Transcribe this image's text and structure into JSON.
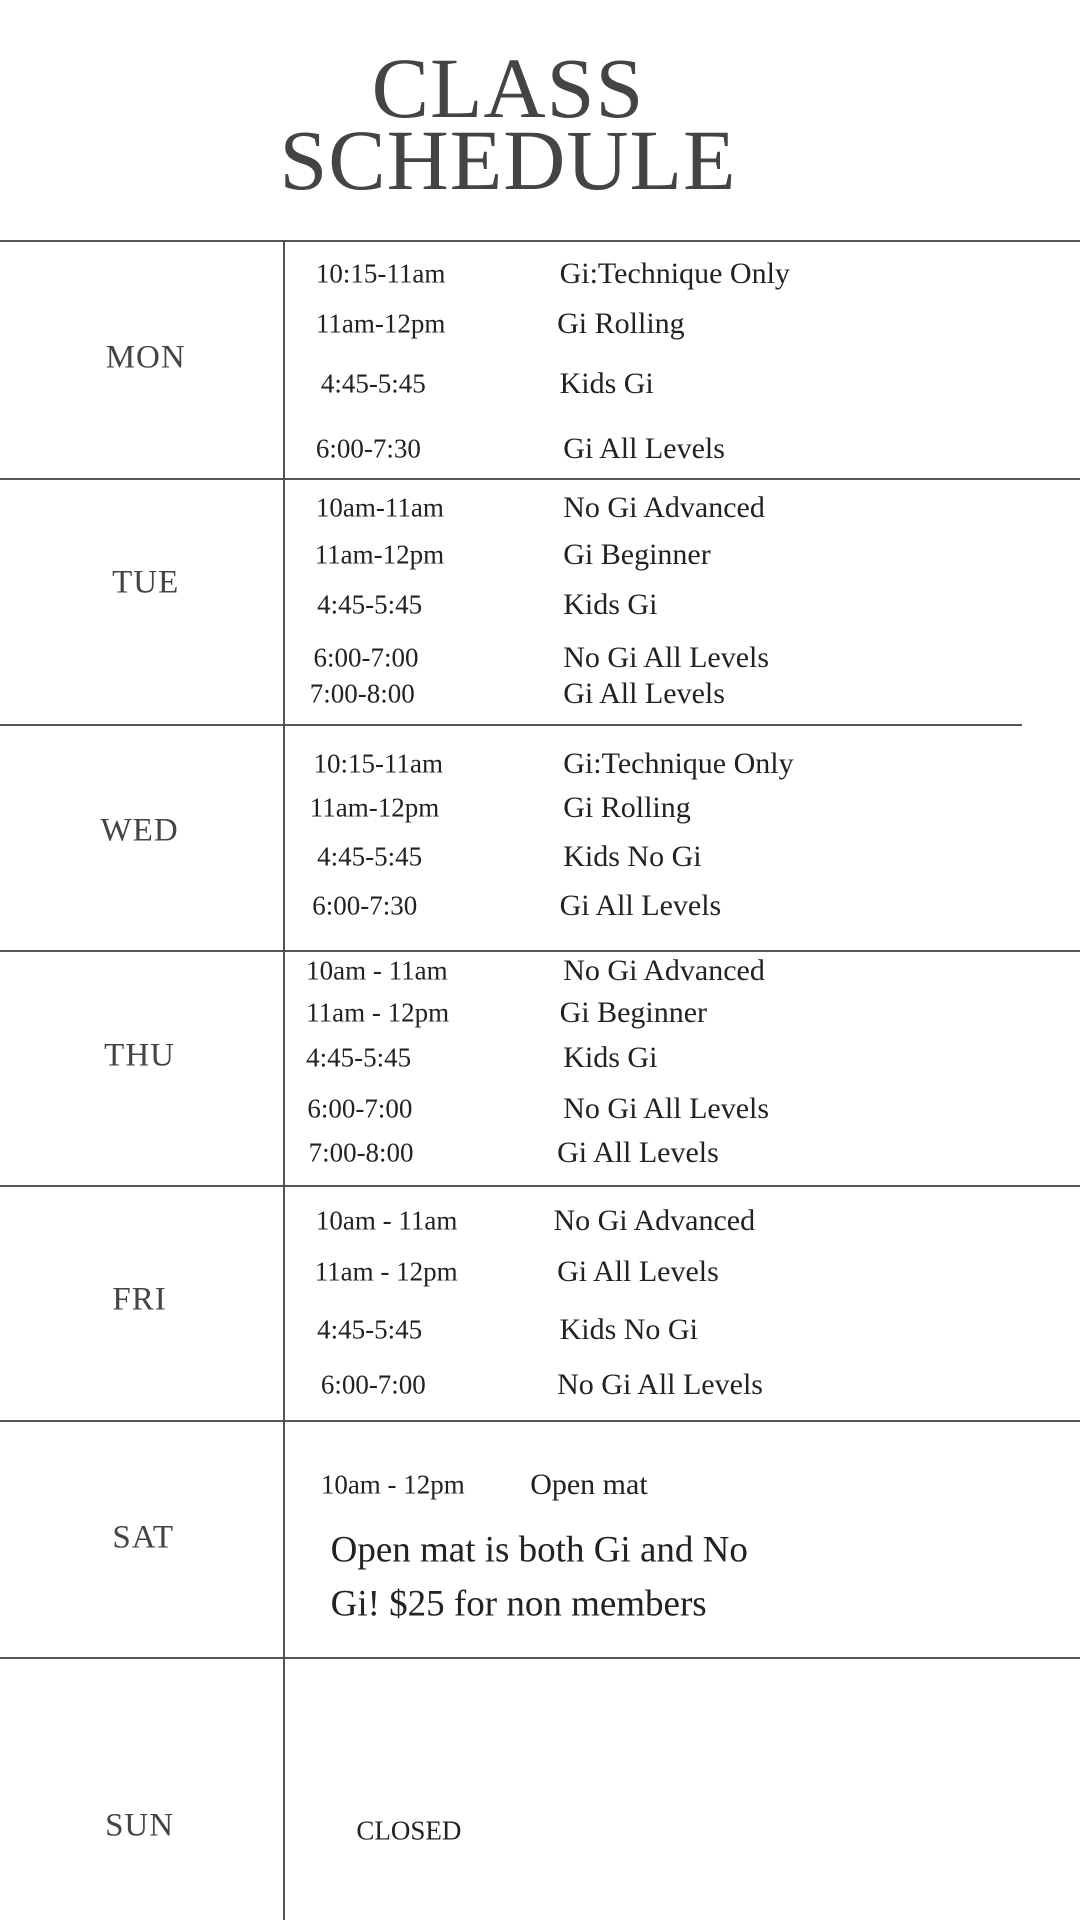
{
  "title": {
    "line1": "CLASS",
    "line2": "SCHEDULE"
  },
  "days": [
    {
      "day": "MON",
      "classes": [
        {
          "time": "10:15-11am",
          "name": "Gi:Technique Only"
        },
        {
          "time": "11am-12pm",
          "name": "Gi Rolling"
        },
        {
          "time": "4:45-5:45",
          "name": "Kids Gi"
        },
        {
          "time": "6:00-7:30",
          "name": "Gi All Levels"
        }
      ]
    },
    {
      "day": "TUE",
      "classes": [
        {
          "time": "10am-11am",
          "name": "No Gi Advanced"
        },
        {
          "time": "11am-12pm",
          "name": "Gi Beginner"
        },
        {
          "time": "4:45-5:45",
          "name": "Kids Gi"
        },
        {
          "time": "6:00-7:00",
          "name": "No Gi All Levels"
        },
        {
          "time": "7:00-8:00",
          "name": "Gi All Levels"
        }
      ]
    },
    {
      "day": "WED",
      "classes": [
        {
          "time": "10:15-11am",
          "name": "Gi:Technique Only"
        },
        {
          "time": "11am-12pm",
          "name": "Gi Rolling"
        },
        {
          "time": "4:45-5:45",
          "name": "Kids No Gi"
        },
        {
          "time": "6:00-7:30",
          "name": "Gi All Levels"
        }
      ]
    },
    {
      "day": "THU",
      "classes": [
        {
          "time": "10am - 11am",
          "name": "No Gi Advanced"
        },
        {
          "time": "11am - 12pm",
          "name": "Gi Beginner"
        },
        {
          "time": "4:45-5:45",
          "name": "Kids Gi"
        },
        {
          "time": "6:00-7:00",
          "name": "No Gi All Levels"
        },
        {
          "time": "7:00-8:00",
          "name": "Gi All Levels"
        }
      ]
    },
    {
      "day": "FRI",
      "classes": [
        {
          "time": "10am - 11am",
          "name": "No Gi Advanced"
        },
        {
          "time": "11am - 12pm",
          "name": "Gi All Levels"
        },
        {
          "time": "4:45-5:45",
          "name": "Kids No Gi"
        },
        {
          "time": "6:00-7:00",
          "name": "No Gi All Levels"
        }
      ]
    },
    {
      "day": "SAT",
      "classes": [
        {
          "time": "10am - 12pm",
          "name": "Open mat"
        }
      ],
      "note_lines": [
        "Open mat is both Gi and No",
        "Gi! $25 for non members"
      ]
    },
    {
      "day": "SUN",
      "status": "CLOSED"
    }
  ]
}
